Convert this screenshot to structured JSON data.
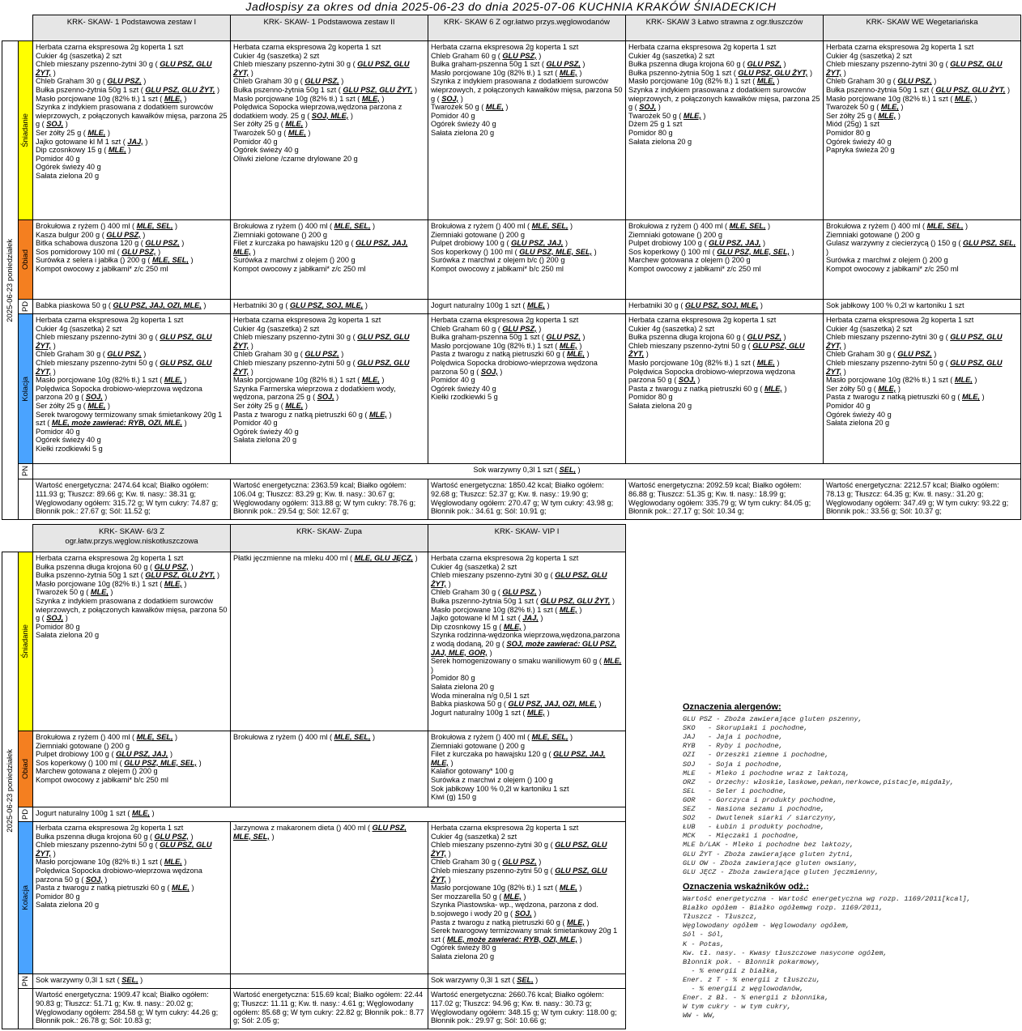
{
  "title": "Jadłospisy  za okres od dnia 2025-06-23 do dnia 2025-07-06 KUCHNIA KRAKÓW ŚNIADECKICH",
  "tables": [
    {
      "date": "2025-06-23 poniedziałek",
      "columns": [
        "KRK- SKAW- 1 Podstawowa zestaw I",
        "KRK- SKAW- 1 Podstawowa zestaw II",
        "KRK- SKAW 6 Z ogr.łatwo przys.węglowodanów",
        "KRK- SKAW 3 Łatwo strawna z ogr.tłuszczów",
        "KRK- SKAW WE Wegetariańska"
      ],
      "rows": [
        {
          "label": "Śniadanie",
          "cells": [
            [
              "Herbata czarna ekspresowa 2g koperta  1 szt",
              "Cukier 4g (saszetka)  2 szt",
              "Chleb mieszany pszenno-żytni  30 g ( GLU PSZ, GLU ŻYT, )",
              "Chleb Graham  30 g ( GLU PSZ, )",
              "Bułka pszenno-żytnia 50g  1 szt ( GLU PSZ, GLU ŻYT, )",
              "Masło porcjowane 10g (82% tł.)  1 szt ( MLE, )",
              "Szynka z indykiem prasowana z dodatkiem surowców wieprzowych, z połączonych kawałków mięsa, parzona  25 g ( SOJ, )",
              "Ser żółty  25 g ( MLE, )",
              "Jajko gotowane kl M  1 szt ( JAJ, )",
              "Dip czosnkowy  15 g ( MLE, )",
              "Pomidor  40 g",
              "Ogórek świeży  40 g",
              "Sałata zielona  20 g"
            ],
            [
              "Herbata czarna ekspresowa 2g koperta  1 szt",
              "Cukier 4g (saszetka)  2 szt",
              "Chleb mieszany pszenno-żytni  30 g ( GLU PSZ, GLU ŻYT, )",
              "Chleb Graham  30 g ( GLU PSZ, )",
              "Bułka pszenno-żytnia 50g  1 szt ( GLU PSZ, GLU ŻYT, )",
              "Masło porcjowane 10g (82% tł.)  1 szt ( MLE, )",
              "Polędwica Sopocka wieprzowa,wędzona parzona z dodatkiem wody.  25 g ( SOJ, MLE, )",
              "Ser żółty  25 g ( MLE, )",
              "Twarożek  50 g ( MLE, )",
              "Pomidor  40 g",
              "Ogórek świeży  40 g",
              "Oliwki zielone /czarne drylowane  20 g"
            ],
            [
              "Herbata czarna ekspresowa 2g koperta  1 szt",
              "Chleb Graham  60 g ( GLU PSZ, )",
              "Bułka graham-pszenna 50g  1 szt ( GLU PSZ, )",
              "Masło porcjowane 10g (82% tł.)  1 szt ( MLE, )",
              "Szynka z indykiem prasowana z dodatkiem surowców wieprzowych, z połączonych kawałków mięsa, parzona  50 g ( SOJ, )",
              "Twarożek  50 g ( MLE, )",
              "Pomidor  40 g",
              "Ogórek świeży  40 g",
              "Sałata zielona  20 g"
            ],
            [
              "Herbata czarna ekspresowa 2g koperta  1 szt",
              "Cukier 4g (saszetka)  2 szt",
              "Bułka pszenna długa krojona  60 g ( GLU PSZ, )",
              "Bułka pszenno-żytnia 50g  1 szt ( GLU PSZ, GLU ŻYT, )",
              "Masło porcjowane 10g (82% tł.)  1 szt ( MLE, )",
              "Szynka z indykiem prasowana z dodatkiem surowców wieprzowych, z połączonych kawałków mięsa, parzona  25 g ( SOJ, )",
              "Twarożek  50 g ( MLE, )",
              "Dżem 25 g  1 szt",
              "Pomidor  80 g",
              "Sałata zielona  20 g"
            ],
            [
              "Herbata czarna ekspresowa 2g koperta  1 szt",
              "Cukier 4g (saszetka)  2 szt",
              "Chleb mieszany pszenno-żytni  30 g ( GLU PSZ, GLU ŻYT, )",
              "Chleb Graham  30 g ( GLU PSZ, )",
              "Bułka pszenno-żytnia 50g  1 szt ( GLU PSZ, GLU ŻYT, )",
              "Masło porcjowane 10g (82% tł.)  1 szt ( MLE, )",
              "Twarożek  50 g ( MLE, )",
              "Ser żółty  25 g ( MLE, )",
              "Miód (25g)  1 szt",
              "Pomidor  80 g",
              "Ogórek świeży  40 g",
              "Papryka świeża  20 g"
            ]
          ]
        },
        {
          "label": "Obiad",
          "cells": [
            [
              "Brokułowa z ryżem ()  400 ml ( MLE, SEL, )",
              "Kasza bulgur  200 g ( GLU PSZ, )",
              "Bitka schabowa duszona  120 g ( GLU PSZ, )",
              "Sos pomidorowy  100 ml ( GLU PSZ, )",
              "Surówka z selera i jabłka ()  200 g ( MLE, SEL, )",
              "Kompot owocowy z jabłkami* z/c  250 ml"
            ],
            [
              "Brokułowa z ryżem ()  400 ml ( MLE, SEL, )",
              "Ziemniaki gotowane ()  200 g",
              "Filet z kurczaka po hawajsku  120 g ( GLU PSZ, JAJ, MLE, )",
              "Surówka z marchwi z olejem ()  200 g",
              "Kompot owocowy z jabłkami* z/c  250 ml"
            ],
            [
              "Brokułowa z ryżem ()  400 ml ( MLE, SEL, )",
              "Ziemniaki gotowane ()  200 g",
              "Pulpet drobiowy  100 g ( GLU PSZ, JAJ, )",
              "Sos koperkowy ()  100 ml ( GLU PSZ, MLE, SEL, )",
              "Surówka z marchwi z olejem b/c ()  200 g",
              "Kompot owocowy z jabłkami* b/c  250 ml"
            ],
            [
              "Brokułowa z ryżem ()  400 ml ( MLE, SEL, )",
              "Ziemniaki gotowane ()  200 g",
              "Pulpet drobiowy  100 g ( GLU PSZ, JAJ, )",
              "Sos koperkowy ()  100 ml ( GLU PSZ, MLE, SEL, )",
              "Marchew gotowana z olejem ()  200 g",
              "Kompot owocowy z jabłkami* z/c  250 ml"
            ],
            [
              "Brokułowa z ryżem ()  400 ml ( MLE, SEL, )",
              "Ziemniaki gotowane ()  200 g",
              "Gulasz warzywny z ciecierzycą ()  150 g ( GLU PSZ, SEL, )",
              "Surówka z marchwi z olejem ()  200 g",
              "Kompot owocowy z jabłkami* z/c  250 ml"
            ]
          ]
        },
        {
          "label": "PD",
          "cells": [
            [
              "Babka piaskowa  50 g ( GLU PSZ, JAJ, OZI, MLE, )"
            ],
            [
              "Herbatniki  30 g ( GLU PSZ, SOJ, MLE, )"
            ],
            [
              "Jogurt naturalny  100g  1 szt ( MLE, )"
            ],
            [
              "Herbatniki  30 g ( GLU PSZ, SOJ, MLE, )"
            ],
            [
              "Sok jabłkowy 100 % 0,2l w kartoniku  1 szt"
            ]
          ]
        },
        {
          "label": "Kolacja",
          "cells": [
            [
              "Herbata czarna ekspresowa 2g koperta  1 szt",
              "Cukier 4g (saszetka)  2 szt",
              "Chleb mieszany pszenno-żytni  30 g ( GLU PSZ, GLU ŻYT, )",
              "Chleb Graham  30 g ( GLU PSZ, )",
              "Chleb mieszany pszenno-żytni  50 g ( GLU PSZ, GLU ŻYT, )",
              "Masło porcjowane 10g (82% tł.)  1 szt ( MLE, )",
              "Polędwica Sopocka drobiowo-wieprzowa wędzona parzona  20 g ( SOJ, )",
              "Ser żółty  25 g ( MLE, )",
              "Serek twarogowy termizowany smak śmietankowy 20g  1 szt ( MLE, może zawierać: RYB, OZI, MLE, )",
              "Pomidor  40 g",
              "Ogórek świeży  40 g",
              "Kiełki rzodkiewki  5 g"
            ],
            [
              "Herbata czarna ekspresowa 2g koperta  1 szt",
              "Cukier 4g (saszetka)  2 szt",
              "Chleb mieszany pszenno-żytni  30 g ( GLU PSZ, GLU ŻYT, )",
              "Chleb Graham  30 g ( GLU PSZ, )",
              "Chleb mieszany pszenno-żytni  50 g ( GLU PSZ, GLU ŻYT, )",
              "Masło porcjowane 10g (82% tł.)  1 szt ( MLE, )",
              "Szynka Farmerska wieprzowa z dodatkiem wody, wędzona, parzona  25 g ( SOJ, )",
              "Ser żółty  25 g ( MLE, )",
              "Pasta z twarogu z natką pietruszki  60 g ( MLE, )",
              "Pomidor  40 g",
              "Ogórek świeży  40 g",
              "Sałata zielona  20 g"
            ],
            [
              "Herbata czarna ekspresowa 2g koperta  1 szt",
              "Chleb Graham  60 g ( GLU PSZ, )",
              "Bułka graham-pszenna 50g  1 szt ( GLU PSZ, )",
              "Masło porcjowane 10g (82% tł.)  1 szt ( MLE, )",
              "Pasta z twarogu z natką pietruszki  60 g ( MLE, )",
              "Polędwica Sopocka drobiowo-wieprzowa wędzona parzona  50 g ( SOJ, )",
              "Pomidor  40 g",
              "Ogórek świeży  40 g",
              "Kiełki rzodkiewki  5 g"
            ],
            [
              "Herbata czarna ekspresowa 2g koperta  1 szt",
              "Cukier 4g (saszetka)  2 szt",
              "Bułka pszenna długa krojona  60 g ( GLU PSZ, )",
              "Chleb mieszany pszenno-żytni  50 g ( GLU PSZ, GLU ŻYT, )",
              "Masło porcjowane 10g (82% tł.)  1 szt ( MLE, )",
              "Polędwica Sopocka drobiowo-wieprzowa wędzona parzona  50 g ( SOJ, )",
              "Pasta z twarogu z natką pietruszki  60 g ( MLE, )",
              "Pomidor  80 g",
              "Sałata zielona  20 g"
            ],
            [
              "Herbata czarna ekspresowa 2g koperta  1 szt",
              "Cukier 4g (saszetka)  2 szt",
              "Chleb mieszany pszenno-żytni  30 g ( GLU PSZ, GLU ŻYT, )",
              "Chleb Graham  30 g ( GLU PSZ, )",
              "Chleb mieszany pszenno-żytni  50 g ( GLU PSZ, GLU ŻYT, )",
              "Masło porcjowane 10g (82% tł.)  1 szt ( MLE, )",
              "Ser żółty  50 g ( MLE, )",
              "Pasta z twarogu z natką pietruszki  60 g ( MLE, )",
              "Pomidor  40 g",
              "Ogórek świeży  40 g",
              "Sałata zielona  20 g"
            ]
          ]
        },
        {
          "label": "PN",
          "span": [
            "Sok warzywny 0,3l  1 szt ( SEL, )"
          ]
        },
        {
          "cells": [
            [
              "Wartość energetyczna: 2474.64 kcal; Białko ogółem: 111.93 g; Tłuszcz: 89.66 g; Kw. tł. nasy.: 38.31 g; Węglowodany ogółem: 315.72 g; W tym cukry: 74.87 g; Błonnik pok.: 27.67 g; Sól: 11.52 g;"
            ],
            [
              "Wartość energetyczna: 2363.59 kcal; Białko ogółem: 106.04 g; Tłuszcz: 83.29 g; Kw. tł. nasy.: 30.67 g; Węglowodany ogółem: 313.88 g; W tym cukry: 78.76 g; Błonnik pok.: 29.54 g; Sól: 12.67 g;"
            ],
            [
              "Wartość energetyczna: 1850.42 kcal; Białko ogółem: 92.68 g; Tłuszcz: 52.37 g; Kw. tł. nasy.: 19.90 g; Węglowodany ogółem: 270.47 g; W tym cukry: 43.98 g; Błonnik pok.: 34.61 g; Sól: 10.91 g;"
            ],
            [
              "Wartość energetyczna: 2092.59 kcal; Białko ogółem: 86.88 g; Tłuszcz: 51.35 g; Kw. tł. nasy.: 18.99 g; Węglowodany ogółem: 335.79 g; W tym cukry: 84.05 g; Błonnik pok.: 27.17 g; Sól: 10.34 g;"
            ],
            [
              "Wartość energetyczna: 2212.57 kcal; Białko ogółem: 78.13 g; Tłuszcz: 64.35 g; Kw. tł. nasy.: 31.20 g; Węglowodany ogółem: 347.49 g; W tym cukry: 93.22 g; Błonnik pok.: 33.56 g; Sól: 10.37 g;"
            ]
          ]
        }
      ]
    },
    {
      "date": "2025-06-23 poniedziałek",
      "columns": [
        "KRK- SKAW- 6/3 Z\nogr.łatw.przys.węglow.niskotłuszczowa",
        "KRK- SKAW- Zupa",
        "KRK- SKAW- VIP I"
      ],
      "rows": [
        {
          "label": "Śniadanie",
          "cells": [
            [
              "Herbata czarna ekspresowa 2g koperta  1 szt",
              "Bułka pszenna długa krojona  60 g ( GLU PSZ, )",
              "Bułka pszenno-żytnia 50g  1 szt ( GLU PSZ, GLU ŻYT, )",
              "Masło porcjowane 10g (82% tł.)  1 szt ( MLE, )",
              "Twarożek  50 g ( MLE, )",
              "Szynka z indykiem prasowana z dodatkiem surowców wieprzowych, z połączonych kawałków mięsa, parzona  50 g ( SOJ, )",
              "Pomidor  80 g",
              "Sałata zielona  20 g"
            ],
            [
              "Płatki jęczmienne na mleku  400 ml ( MLE, GLU JĘCZ, )"
            ],
            [
              "Herbata czarna ekspresowa 2g koperta  1 szt",
              "Cukier 4g (saszetka)  2 szt",
              "Chleb mieszany pszenno-żytni  30 g ( GLU PSZ, GLU ŻYT, )",
              "Chleb Graham  30 g ( GLU PSZ, )",
              "Bułka pszenno-żytnia 50g  1 szt ( GLU PSZ, GLU ŻYT, )",
              "Masło porcjowane 10g (82% tł.)  1 szt ( MLE, )",
              "Jajko gotowane kl M  1 szt ( JAJ, )",
              "Dip czosnkowy  15 g ( MLE, )",
              "Szynka rodzinna-wędzonka wieprzowa,wędzona,parzona z wodą dodaną,  20 g ( SOJ, może zawierać: GLU PSZ, JAJ, MLE, GOR, )",
              "Serek homogenizowany o smaku waniliowym  60 g ( MLE, )",
              "Pomidor  80 g",
              "Sałata zielona  20 g",
              "Woda mineralna n/g 0,5l  1 szt",
              "Babka piaskowa  50 g ( GLU PSZ, JAJ, OZI, MLE, )",
              "Jogurt naturalny  100g  1 szt ( MLE, )"
            ]
          ]
        },
        {
          "label": "Obiad",
          "cells": [
            [
              "Brokułowa z ryżem ()  400 ml ( MLE, SEL, )",
              "Ziemniaki gotowane ()  200 g",
              "Pulpet drobiowy  100 g ( GLU PSZ, JAJ, )",
              "Sos koperkowy ()  100 ml ( GLU PSZ, MLE, SEL, )",
              "Marchew gotowana z olejem ()  200 g",
              "Kompot owocowy z jabłkami* b/c  250 ml"
            ],
            [
              "Brokułowa z ryżem ()  400 ml ( MLE, SEL, )"
            ],
            [
              "Brokułowa z ryżem ()  400 ml ( MLE, SEL, )",
              "Ziemniaki gotowane ()  200 g",
              "Filet z kurczaka po hawajsku  120 g ( GLU PSZ, JAJ, MLE, )",
              "Kalafior gotowany*  100 g",
              "Surówka z marchwi z olejem ()  100 g",
              "Sok jabłkowy 100 % 0,2l w kartoniku  1 szt",
              "Kiwi (g)  150 g"
            ]
          ]
        },
        {
          "label": "PD",
          "span": [
            "Jogurt naturalny  100g  1 szt ( MLE, )"
          ]
        },
        {
          "label": "Kolacja",
          "cells": [
            [
              "Herbata czarna ekspresowa 2g koperta  1 szt",
              "Bułka pszenna długa krojona  60 g ( GLU PSZ, )",
              "Chleb mieszany pszenno-żytni  50 g ( GLU PSZ, GLU ŻYT, )",
              "Masło porcjowane 10g (82% tł.)  1 szt ( MLE, )",
              "Polędwica Sopocka drobiowo-wieprzowa wędzona parzona  50 g ( SOJ, )",
              "Pasta z twarogu z natką pietruszki  60 g ( MLE, )",
              "Pomidor  80 g",
              "Sałata zielona  20 g"
            ],
            [
              "Jarzynowa z makaronem dieta ()  400 ml ( GLU PSZ, MLE, SEL, )"
            ],
            [
              "Herbata czarna ekspresowa 2g koperta  1 szt",
              "Cukier 4g (saszetka)  2 szt",
              "Chleb mieszany pszenno-żytni  30 g ( GLU PSZ, GLU ŻYT, )",
              "Chleb Graham  30 g ( GLU PSZ, )",
              "Chleb mieszany pszenno-żytni  50 g ( GLU PSZ, GLU ŻYT, )",
              "Masło porcjowane 10g (82% tł.)  1 szt ( MLE, )",
              "Ser mozzarella  50 g ( MLE, )",
              "Szynka Piastowska- wp., wędzona, parzona z dod. b.sojowego i wody  20 g ( SOJ, )",
              "Pasta z twarogu z natką pietruszki  60 g ( MLE, )",
              "Serek twarogowy termizowany smak śmietankowy 20g  1 szt ( MLE, może zawierać: RYB, OZI, MLE, )",
              "Ogórek świeży  80 g",
              "Sałata zielona  20 g"
            ]
          ]
        },
        {
          "label": "PN",
          "cells": [
            [
              "Sok warzywny 0,3l  1 szt ( SEL, )"
            ],
            [],
            [
              "Sok warzywny 0,3l  1 szt ( SEL, )"
            ]
          ]
        },
        {
          "cells": [
            [
              "Wartość energetyczna: 1909.47 kcal; Białko ogółem: 90.83 g; Tłuszcz: 51.71 g; Kw. tł. nasy.: 20.02 g; Węglowodany ogółem: 284.58 g; W tym cukry: 44.26 g; Błonnik pok.: 26.78 g; Sól: 10.83 g;"
            ],
            [
              "Wartość energetyczna: 515.69 kcal; Białko ogółem: 22.44 g; Tłuszcz: 11.11 g; Kw. tł. nasy.: 4.61 g; Węglowodany ogółem: 85.68 g; W tym cukry: 22.82 g; Błonnik pok.: 8.77 g; Sól: 2.05 g;"
            ],
            [
              "Wartość energetyczna: 2660.76 kcal; Białko ogółem: 117.02 g; Tłuszcz: 94.96 g; Kw. tł. nasy.: 30.73 g; Węglowodany ogółem: 348.15 g; W tym cukry: 118.00 g; Błonnik pok.: 29.97 g; Sól: 10.66 g;"
            ]
          ]
        }
      ]
    }
  ],
  "allergens": {
    "title": "Oznaczenia alergenów:",
    "lines": [
      "GLU PSZ - Zboża zawierające gluten pszenny,",
      "SKO   - Skorupiaki i pochodne,",
      "JAJ   - Jaja i pochodne,",
      "RYB   - Ryby i pochodne,",
      "OZI   - Orzeszki ziemne i pochodne,",
      "SOJ   - Soja i pochodne,",
      "MLE   - Mleko i pochodne wraz z laktozą,",
      "ORZ   - Orzechy: włoskie,laskowe,pekan,nerkowce,pistacje,migdały,",
      "SEL   - Seler i pochodne,",
      "GOR   - Gorczyca i produkty pochodne,",
      "SEZ   - Nasiona sezamu i pochodne,",
      "SO2   - Dwutlenek siarki / siarczyny,",
      "ŁUB   - Łubin i produkty pochodne,",
      "MCK   - Mięczaki i pochodne,",
      "MLE b/LAK - Mleko i pochodne bez laktozy,",
      "GLU ŻYT - Zboża zawierające gluten żytni,",
      "GLU OW - Zboża zawierające gluten owsiany,",
      "GLU JĘCZ - Zboża zawierające gluten jęczmienny,"
    ]
  },
  "indicators": {
    "title": "Oznaczenia wskaźników odż.:",
    "lines": [
      "Wartość energetyczna - Wartość energetyczna wg rozp. 1169/2011[kcal],",
      "Białko ogółem - Białko ogółemwg rozp. 1169/2011,",
      "Tłuszcz - Tłuszcz,",
      "Węglowodany ogółem - Węglowodany ogółem,",
      "Sól - Sól,",
      "K - Potas,",
      "Kw. tł. nasy. - Kwasy tłuszczowe nasycone ogółem,",
      "Błonnik pok. - Błonnik pokarmowy,",
      "  - % energii z białka,",
      "Ener. z T - % energii z tłuszczu,",
      "  - % energii z węglowodanów,",
      "Ener. z Bł. - % energii z błonnika,",
      "W tym cukry - w tym cukry,",
      "WW - WW,"
    ]
  }
}
